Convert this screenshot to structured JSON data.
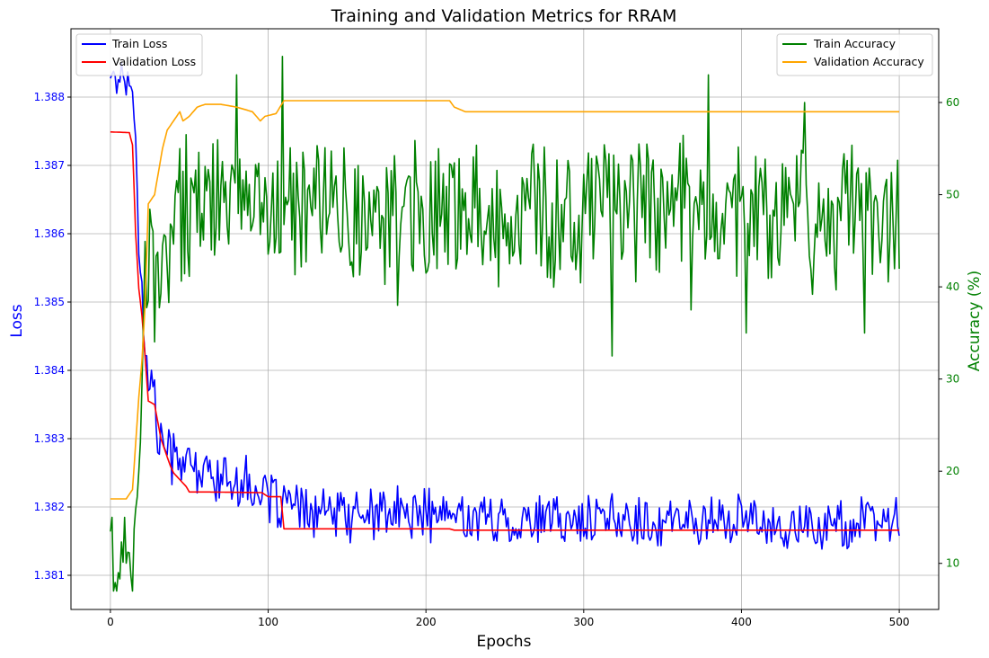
{
  "chart_data": {
    "type": "line",
    "title": "Training and Validation Metrics for RRAM",
    "xlabel": "Epochs",
    "ylabel_left": "Loss",
    "ylabel_right": "Accuracy (%)",
    "xlim": [
      -25,
      525
    ],
    "ylim_left": [
      1.3805,
      1.389
    ],
    "ylim_right": [
      5,
      68
    ],
    "grid": true,
    "x_ticks": [
      0,
      100,
      200,
      300,
      400,
      500
    ],
    "y_left_ticks": [
      1.381,
      1.382,
      1.383,
      1.384,
      1.385,
      1.386,
      1.387,
      1.388
    ],
    "y_right_ticks": [
      10,
      20,
      30,
      40,
      50,
      60
    ],
    "legend_left": {
      "placement": "upper left",
      "entries": [
        "Train Loss",
        "Validation Loss"
      ]
    },
    "legend_right": {
      "placement": "upper right",
      "entries": [
        "Train Accuracy",
        "Validation Accuracy"
      ]
    },
    "colors": {
      "left_axis": "#0000ff",
      "right_axis": "#008000"
    },
    "series": [
      {
        "name": "Train Loss",
        "axis": "left",
        "color": "#0000ff",
        "kind": "noisy",
        "x": [
          0,
          2,
          4,
          6,
          8,
          10,
          12,
          14,
          16,
          18,
          20,
          22,
          24,
          26,
          28,
          30,
          32,
          35,
          38,
          40,
          45,
          50,
          55,
          60,
          65,
          70,
          80,
          90,
          100,
          110,
          120,
          150,
          200,
          250,
          300,
          350,
          400,
          450,
          500
        ],
        "y": [
          1.3884,
          1.3883,
          1.3882,
          1.3883,
          1.3884,
          1.3881,
          1.3884,
          1.3882,
          1.3873,
          1.3858,
          1.3852,
          1.3843,
          1.3838,
          1.3838,
          1.3837,
          1.383,
          1.3829,
          1.383,
          1.3827,
          1.3828,
          1.3827,
          1.3826,
          1.3825,
          1.3825,
          1.3825,
          1.3824,
          1.3824,
          1.3823,
          1.3821,
          1.3821,
          1.3819,
          1.3819,
          1.3819,
          1.3818,
          1.3818,
          1.3818,
          1.3818,
          1.3817,
          1.3818
        ],
        "noise": 0.00045
      },
      {
        "name": "Validation Loss",
        "axis": "left",
        "color": "#ff0000",
        "kind": "step",
        "x": [
          0,
          12,
          14,
          16,
          18,
          20,
          22,
          24,
          28,
          32,
          35,
          38,
          40,
          44,
          48,
          50,
          60,
          96,
          100,
          108,
          110,
          215,
          218,
          500
        ],
        "y": [
          1.38749,
          1.38748,
          1.3873,
          1.386,
          1.3852,
          1.3848,
          1.3842,
          1.38355,
          1.3835,
          1.383,
          1.3828,
          1.3826,
          1.3825,
          1.3824,
          1.3823,
          1.38222,
          1.38222,
          1.38221,
          1.38215,
          1.38215,
          1.38168,
          1.38168,
          1.38166,
          1.38166
        ]
      },
      {
        "name": "Train Accuracy",
        "axis": "right",
        "color": "#008000",
        "kind": "noisy",
        "x": [
          0,
          3,
          6,
          9,
          12,
          15,
          18,
          20,
          22,
          24,
          26,
          28,
          30,
          33,
          36,
          40,
          45,
          50,
          60,
          80,
          100,
          150,
          200,
          250,
          300,
          350,
          400,
          450,
          500
        ],
        "y": [
          12,
          10,
          10,
          11,
          9,
          12,
          18,
          30,
          42,
          45,
          44,
          36,
          38,
          42,
          46,
          47,
          48,
          48,
          49,
          49,
          49,
          48,
          48,
          48,
          48,
          48,
          48,
          48,
          47
        ],
        "noise": 9,
        "spikes": [
          [
            1,
            15
          ],
          [
            2,
            7
          ],
          [
            4,
            7
          ],
          [
            9,
            15
          ],
          [
            14,
            7
          ],
          [
            44,
            55
          ],
          [
            80,
            63
          ],
          [
            109,
            65
          ],
          [
            182,
            38
          ],
          [
            318,
            32.5
          ],
          [
            368,
            37.5
          ],
          [
            379,
            63
          ],
          [
            403,
            35
          ],
          [
            440,
            60
          ],
          [
            478,
            35
          ]
        ]
      },
      {
        "name": "Validation Accuracy",
        "axis": "right",
        "color": "#ffa500",
        "kind": "step",
        "x": [
          0,
          10,
          14,
          16,
          18,
          20,
          22,
          24,
          28,
          30,
          33,
          36,
          38,
          40,
          42,
          44,
          46,
          50,
          55,
          60,
          70,
          80,
          90,
          95,
          98,
          105,
          110,
          115,
          200,
          215,
          218,
          225,
          500
        ],
        "y": [
          17,
          17,
          18,
          23,
          28,
          32,
          38,
          49,
          50,
          52,
          55,
          57,
          57.5,
          58,
          58.5,
          59,
          58,
          58.5,
          59.5,
          59.8,
          59.8,
          59.5,
          59,
          58,
          58.5,
          58.8,
          60.2,
          60.2,
          60.2,
          60.2,
          59.5,
          59,
          59
        ]
      }
    ]
  }
}
